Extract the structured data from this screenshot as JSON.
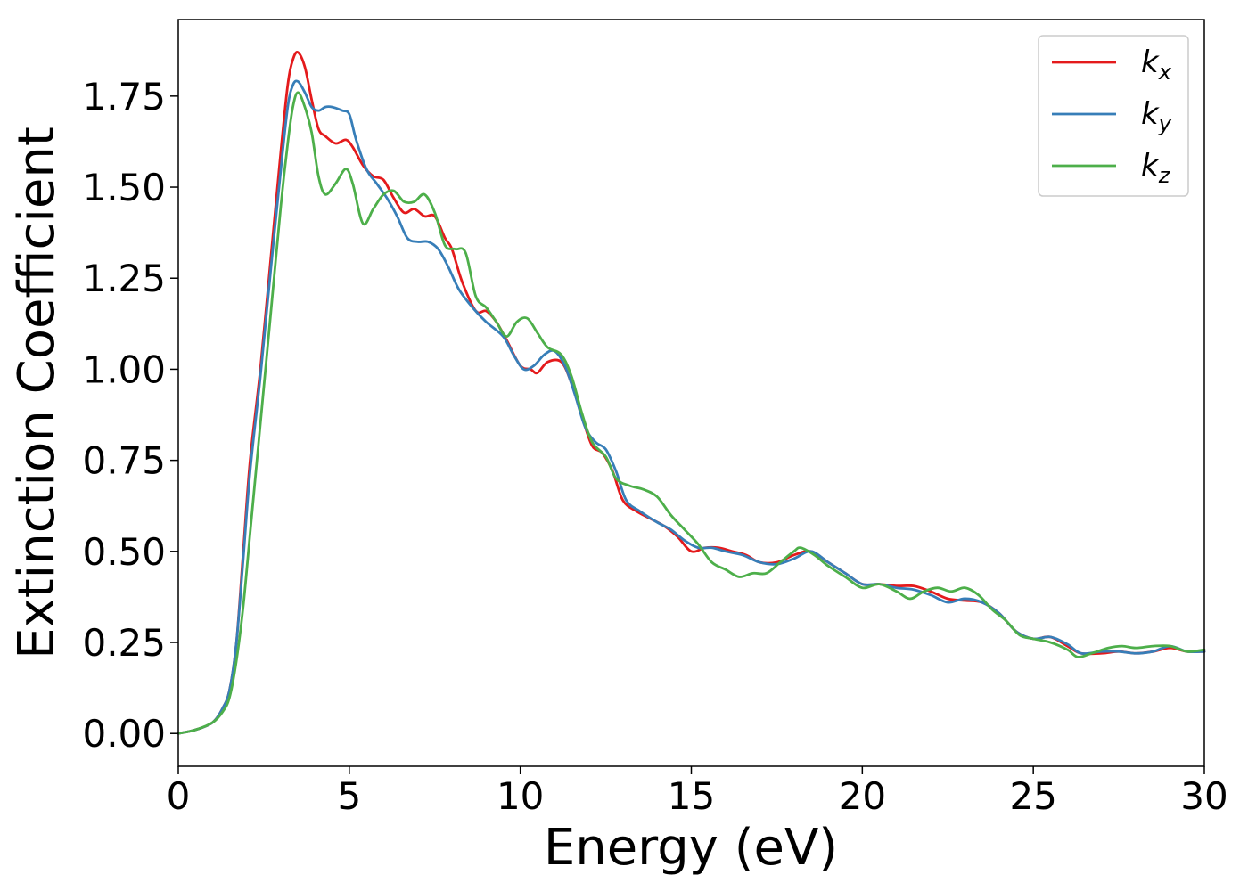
{
  "chart_data": {
    "type": "line",
    "title": "",
    "xlabel": "Energy (eV)",
    "ylabel": "Extinction Coefficient",
    "xlim": [
      0,
      30
    ],
    "ylim": [
      -0.09,
      1.96
    ],
    "xticks": [
      0,
      5,
      10,
      15,
      20,
      25,
      30
    ],
    "xtick_labels": [
      "0",
      "5",
      "10",
      "15",
      "20",
      "25",
      "30"
    ],
    "yticks": [
      0,
      0.25,
      0.5,
      0.75,
      1.0,
      1.25,
      1.5,
      1.75
    ],
    "ytick_labels": [
      "0.00",
      "0.25",
      "0.50",
      "0.75",
      "1.00",
      "1.25",
      "1.50",
      "1.75"
    ],
    "grid": false,
    "legend_position": "top-right",
    "series": [
      {
        "name": "k",
        "subscript": "x",
        "color": "#e41a1c",
        "points": [
          [
            0,
            0.0
          ],
          [
            0.5,
            0.01
          ],
          [
            1.0,
            0.03
          ],
          [
            1.3,
            0.07
          ],
          [
            1.5,
            0.12
          ],
          [
            1.7,
            0.25
          ],
          [
            1.9,
            0.5
          ],
          [
            2.1,
            0.75
          ],
          [
            2.4,
            1.0
          ],
          [
            2.7,
            1.3
          ],
          [
            3.0,
            1.6
          ],
          [
            3.2,
            1.78
          ],
          [
            3.35,
            1.85
          ],
          [
            3.5,
            1.87
          ],
          [
            3.7,
            1.83
          ],
          [
            3.9,
            1.74
          ],
          [
            4.1,
            1.66
          ],
          [
            4.3,
            1.64
          ],
          [
            4.6,
            1.62
          ],
          [
            4.9,
            1.63
          ],
          [
            5.1,
            1.61
          ],
          [
            5.4,
            1.56
          ],
          [
            5.7,
            1.53
          ],
          [
            6.0,
            1.52
          ],
          [
            6.3,
            1.47
          ],
          [
            6.6,
            1.43
          ],
          [
            6.9,
            1.44
          ],
          [
            7.2,
            1.42
          ],
          [
            7.5,
            1.42
          ],
          [
            7.8,
            1.36
          ],
          [
            8.0,
            1.33
          ],
          [
            8.3,
            1.24
          ],
          [
            8.7,
            1.16
          ],
          [
            9.0,
            1.16
          ],
          [
            9.3,
            1.13
          ],
          [
            9.6,
            1.08
          ],
          [
            10.0,
            1.01
          ],
          [
            10.3,
            1.0
          ],
          [
            10.5,
            0.99
          ],
          [
            10.8,
            1.02
          ],
          [
            11.2,
            1.02
          ],
          [
            11.5,
            0.96
          ],
          [
            11.8,
            0.87
          ],
          [
            12.1,
            0.79
          ],
          [
            12.4,
            0.77
          ],
          [
            12.7,
            0.72
          ],
          [
            13.0,
            0.64
          ],
          [
            13.4,
            0.61
          ],
          [
            13.8,
            0.59
          ],
          [
            14.2,
            0.57
          ],
          [
            14.6,
            0.54
          ],
          [
            15.0,
            0.5
          ],
          [
            15.4,
            0.51
          ],
          [
            15.8,
            0.51
          ],
          [
            16.2,
            0.5
          ],
          [
            16.6,
            0.49
          ],
          [
            17.0,
            0.47
          ],
          [
            17.5,
            0.47
          ],
          [
            18.0,
            0.49
          ],
          [
            18.5,
            0.5
          ],
          [
            19.0,
            0.47
          ],
          [
            19.5,
            0.44
          ],
          [
            20.0,
            0.41
          ],
          [
            20.5,
            0.41
          ],
          [
            21.0,
            0.405
          ],
          [
            21.5,
            0.405
          ],
          [
            22.0,
            0.39
          ],
          [
            22.5,
            0.37
          ],
          [
            23.0,
            0.365
          ],
          [
            23.5,
            0.36
          ],
          [
            24.0,
            0.33
          ],
          [
            24.5,
            0.28
          ],
          [
            25.0,
            0.26
          ],
          [
            25.5,
            0.265
          ],
          [
            26.0,
            0.24
          ],
          [
            26.4,
            0.22
          ],
          [
            27.0,
            0.22
          ],
          [
            27.5,
            0.225
          ],
          [
            28.0,
            0.22
          ],
          [
            28.5,
            0.225
          ],
          [
            29.0,
            0.235
          ],
          [
            29.5,
            0.225
          ],
          [
            30.0,
            0.225
          ]
        ]
      },
      {
        "name": "k",
        "subscript": "y",
        "color": "#377eb8",
        "points": [
          [
            0,
            0.0
          ],
          [
            0.5,
            0.01
          ],
          [
            1.0,
            0.03
          ],
          [
            1.3,
            0.07
          ],
          [
            1.5,
            0.12
          ],
          [
            1.7,
            0.25
          ],
          [
            1.9,
            0.48
          ],
          [
            2.1,
            0.72
          ],
          [
            2.4,
            0.98
          ],
          [
            2.7,
            1.27
          ],
          [
            3.0,
            1.55
          ],
          [
            3.2,
            1.72
          ],
          [
            3.35,
            1.78
          ],
          [
            3.5,
            1.79
          ],
          [
            3.7,
            1.76
          ],
          [
            3.9,
            1.72
          ],
          [
            4.1,
            1.71
          ],
          [
            4.3,
            1.72
          ],
          [
            4.5,
            1.72
          ],
          [
            4.8,
            1.71
          ],
          [
            5.0,
            1.7
          ],
          [
            5.2,
            1.63
          ],
          [
            5.5,
            1.55
          ],
          [
            5.8,
            1.51
          ],
          [
            6.1,
            1.47
          ],
          [
            6.4,
            1.42
          ],
          [
            6.7,
            1.36
          ],
          [
            7.0,
            1.35
          ],
          [
            7.3,
            1.35
          ],
          [
            7.6,
            1.33
          ],
          [
            7.9,
            1.28
          ],
          [
            8.2,
            1.22
          ],
          [
            8.6,
            1.17
          ],
          [
            9.0,
            1.13
          ],
          [
            9.5,
            1.09
          ],
          [
            9.8,
            1.04
          ],
          [
            10.1,
            1.0
          ],
          [
            10.4,
            1.01
          ],
          [
            10.7,
            1.04
          ],
          [
            11.0,
            1.05
          ],
          [
            11.3,
            1.01
          ],
          [
            11.6,
            0.93
          ],
          [
            11.9,
            0.84
          ],
          [
            12.2,
            0.8
          ],
          [
            12.5,
            0.78
          ],
          [
            12.8,
            0.72
          ],
          [
            13.1,
            0.64
          ],
          [
            13.5,
            0.61
          ],
          [
            14.0,
            0.58
          ],
          [
            14.4,
            0.56
          ],
          [
            14.8,
            0.53
          ],
          [
            15.2,
            0.51
          ],
          [
            15.6,
            0.51
          ],
          [
            16.0,
            0.5
          ],
          [
            16.5,
            0.49
          ],
          [
            17.0,
            0.47
          ],
          [
            17.5,
            0.465
          ],
          [
            18.0,
            0.48
          ],
          [
            18.5,
            0.5
          ],
          [
            19.0,
            0.47
          ],
          [
            19.5,
            0.44
          ],
          [
            20.0,
            0.41
          ],
          [
            20.5,
            0.41
          ],
          [
            21.0,
            0.4
          ],
          [
            21.5,
            0.395
          ],
          [
            22.0,
            0.38
          ],
          [
            22.5,
            0.36
          ],
          [
            23.0,
            0.37
          ],
          [
            23.5,
            0.36
          ],
          [
            24.0,
            0.33
          ],
          [
            24.5,
            0.28
          ],
          [
            25.0,
            0.26
          ],
          [
            25.5,
            0.265
          ],
          [
            26.0,
            0.245
          ],
          [
            26.4,
            0.22
          ],
          [
            27.0,
            0.225
          ],
          [
            27.5,
            0.225
          ],
          [
            28.0,
            0.22
          ],
          [
            28.5,
            0.225
          ],
          [
            29.0,
            0.24
          ],
          [
            29.5,
            0.225
          ],
          [
            30.0,
            0.225
          ]
        ]
      },
      {
        "name": "k",
        "subscript": "z",
        "color": "#4daf4a",
        "points": [
          [
            0,
            0.0
          ],
          [
            0.5,
            0.01
          ],
          [
            1.0,
            0.03
          ],
          [
            1.3,
            0.06
          ],
          [
            1.5,
            0.1
          ],
          [
            1.7,
            0.2
          ],
          [
            1.9,
            0.35
          ],
          [
            2.1,
            0.55
          ],
          [
            2.4,
            0.85
          ],
          [
            2.7,
            1.15
          ],
          [
            3.0,
            1.45
          ],
          [
            3.2,
            1.62
          ],
          [
            3.35,
            1.72
          ],
          [
            3.5,
            1.76
          ],
          [
            3.7,
            1.72
          ],
          [
            3.9,
            1.65
          ],
          [
            4.1,
            1.53
          ],
          [
            4.3,
            1.48
          ],
          [
            4.6,
            1.51
          ],
          [
            4.9,
            1.55
          ],
          [
            5.1,
            1.51
          ],
          [
            5.4,
            1.4
          ],
          [
            5.7,
            1.44
          ],
          [
            6.0,
            1.48
          ],
          [
            6.3,
            1.49
          ],
          [
            6.6,
            1.46
          ],
          [
            6.9,
            1.46
          ],
          [
            7.2,
            1.48
          ],
          [
            7.5,
            1.43
          ],
          [
            7.8,
            1.34
          ],
          [
            8.1,
            1.33
          ],
          [
            8.4,
            1.32
          ],
          [
            8.7,
            1.2
          ],
          [
            9.0,
            1.17
          ],
          [
            9.3,
            1.13
          ],
          [
            9.6,
            1.09
          ],
          [
            9.9,
            1.13
          ],
          [
            10.2,
            1.14
          ],
          [
            10.5,
            1.1
          ],
          [
            10.8,
            1.06
          ],
          [
            11.2,
            1.04
          ],
          [
            11.5,
            0.98
          ],
          [
            11.8,
            0.88
          ],
          [
            12.1,
            0.8
          ],
          [
            12.5,
            0.76
          ],
          [
            12.8,
            0.7
          ],
          [
            13.2,
            0.68
          ],
          [
            13.6,
            0.67
          ],
          [
            14.0,
            0.65
          ],
          [
            14.4,
            0.6
          ],
          [
            14.8,
            0.56
          ],
          [
            15.2,
            0.52
          ],
          [
            15.6,
            0.47
          ],
          [
            16.0,
            0.45
          ],
          [
            16.4,
            0.43
          ],
          [
            16.8,
            0.44
          ],
          [
            17.2,
            0.44
          ],
          [
            17.6,
            0.47
          ],
          [
            18.0,
            0.5
          ],
          [
            18.2,
            0.51
          ],
          [
            18.6,
            0.49
          ],
          [
            19.0,
            0.46
          ],
          [
            19.5,
            0.43
          ],
          [
            20.0,
            0.4
          ],
          [
            20.5,
            0.41
          ],
          [
            21.0,
            0.39
          ],
          [
            21.4,
            0.37
          ],
          [
            21.8,
            0.39
          ],
          [
            22.2,
            0.4
          ],
          [
            22.6,
            0.39
          ],
          [
            23.0,
            0.4
          ],
          [
            23.4,
            0.38
          ],
          [
            23.8,
            0.34
          ],
          [
            24.2,
            0.31
          ],
          [
            24.6,
            0.27
          ],
          [
            25.0,
            0.26
          ],
          [
            25.5,
            0.25
          ],
          [
            26.0,
            0.23
          ],
          [
            26.3,
            0.21
          ],
          [
            26.7,
            0.22
          ],
          [
            27.2,
            0.235
          ],
          [
            27.6,
            0.24
          ],
          [
            28.0,
            0.235
          ],
          [
            28.5,
            0.24
          ],
          [
            29.0,
            0.24
          ],
          [
            29.5,
            0.225
          ],
          [
            30.0,
            0.23
          ]
        ]
      }
    ]
  }
}
